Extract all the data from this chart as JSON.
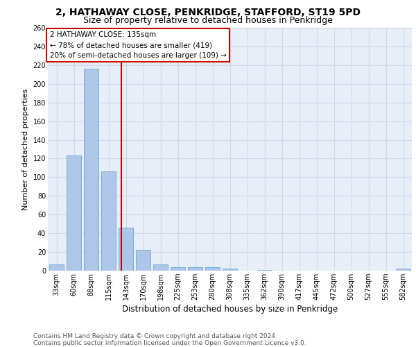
{
  "title1": "2, HATHAWAY CLOSE, PENKRIDGE, STAFFORD, ST19 5PD",
  "title2": "Size of property relative to detached houses in Penkridge",
  "xlabel": "Distribution of detached houses by size in Penkridge",
  "ylabel": "Number of detached properties",
  "bar_labels": [
    "33sqm",
    "60sqm",
    "88sqm",
    "115sqm",
    "143sqm",
    "170sqm",
    "198sqm",
    "225sqm",
    "253sqm",
    "280sqm",
    "308sqm",
    "335sqm",
    "362sqm",
    "390sqm",
    "417sqm",
    "445sqm",
    "472sqm",
    "500sqm",
    "527sqm",
    "555sqm",
    "582sqm"
  ],
  "bar_values": [
    7,
    123,
    216,
    106,
    46,
    22,
    7,
    4,
    4,
    4,
    2,
    0,
    1,
    0,
    0,
    0,
    0,
    0,
    0,
    0,
    2
  ],
  "bar_color": "#aec6e8",
  "bar_edge_color": "#6aaad4",
  "grid_color": "#d0d8e8",
  "background_color": "#e8eef8",
  "vline_x": 3.73,
  "vline_color": "#cc0000",
  "annotation_text": "2 HATHAWAY CLOSE: 135sqm\n← 78% of detached houses are smaller (419)\n20% of semi-detached houses are larger (109) →",
  "annotation_box_color": "#cc0000",
  "ylim": [
    0,
    260
  ],
  "yticks": [
    0,
    20,
    40,
    60,
    80,
    100,
    120,
    140,
    160,
    180,
    200,
    220,
    240,
    260
  ],
  "footer_text": "Contains HM Land Registry data © Crown copyright and database right 2024.\nContains public sector information licensed under the Open Government Licence v3.0.",
  "title1_fontsize": 10,
  "title2_fontsize": 9,
  "xlabel_fontsize": 8.5,
  "ylabel_fontsize": 8,
  "tick_fontsize": 7,
  "footer_fontsize": 6.5,
  "annot_fontsize": 7.5
}
